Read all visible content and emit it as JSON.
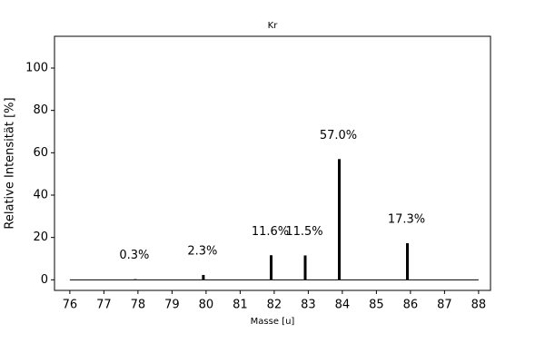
{
  "chart_data": {
    "type": "bar",
    "title": "Kr",
    "x_label": "Masse [u]",
    "y_label": "Relative Intensität [%]",
    "x": [
      77.92,
      79.92,
      81.91,
      82.91,
      83.91,
      85.91
    ],
    "values": [
      0.3,
      2.3,
      11.6,
      11.5,
      57.0,
      17.3
    ],
    "value_labels": [
      "0.3%",
      "2.3%",
      "11.6%",
      "11.5%",
      "57.0%",
      "17.3%"
    ],
    "color": "#000000",
    "xlim": [
      75.55,
      88.35
    ],
    "xticks": [
      76,
      77,
      78,
      79,
      80,
      81,
      82,
      83,
      84,
      85,
      86,
      87,
      88
    ],
    "ylim": [
      -5,
      115
    ],
    "yticks": [
      0,
      20,
      40,
      60,
      80,
      100
    ],
    "grid": false
  }
}
